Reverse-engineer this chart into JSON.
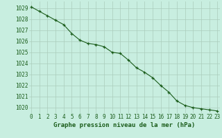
{
  "x": [
    0,
    1,
    2,
    3,
    4,
    5,
    6,
    7,
    8,
    9,
    10,
    11,
    12,
    13,
    14,
    15,
    16,
    17,
    18,
    19,
    20,
    21,
    22,
    23
  ],
  "y": [
    1029.1,
    1028.7,
    1028.3,
    1027.9,
    1027.5,
    1026.7,
    1026.1,
    1025.8,
    1025.7,
    1025.5,
    1025.0,
    1024.9,
    1024.3,
    1023.6,
    1023.2,
    1022.7,
    1022.0,
    1021.4,
    1020.6,
    1020.2,
    1020.0,
    1019.9,
    1019.8,
    1019.7
  ],
  "line_color": "#1a5c1a",
  "marker_color": "#1a5c1a",
  "background_color": "#c8eee0",
  "grid_color": "#aaccbb",
  "title": "Graphe pression niveau de la mer (hPa)",
  "ylim": [
    1019.5,
    1029.6
  ],
  "xlim": [
    -0.3,
    23.3
  ],
  "yticks": [
    1020,
    1021,
    1022,
    1023,
    1024,
    1025,
    1026,
    1027,
    1028,
    1029
  ],
  "xtick_labels": [
    "0",
    "1",
    "2",
    "3",
    "4",
    "5",
    "6",
    "7",
    "8",
    "9",
    "10",
    "11",
    "12",
    "13",
    "14",
    "15",
    "16",
    "17",
    "18",
    "19",
    "20",
    "21",
    "22",
    "23"
  ],
  "tick_fontsize": 5.5,
  "title_fontsize": 6.5,
  "marker_size": 3.5,
  "line_width": 0.8
}
